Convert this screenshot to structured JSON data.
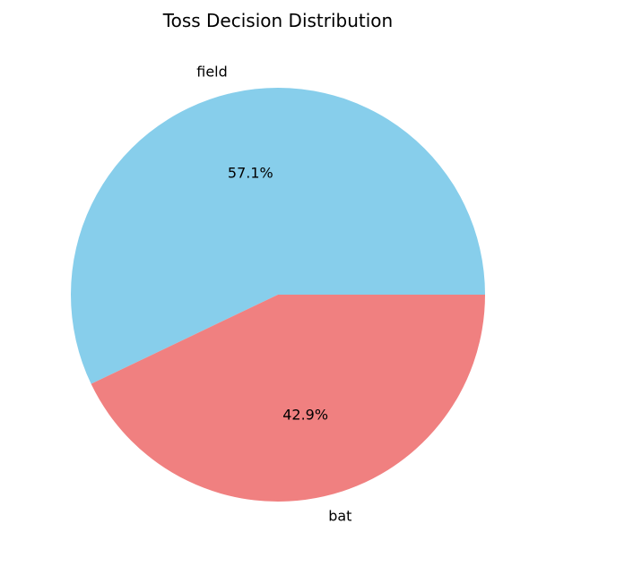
{
  "chart_data": {
    "type": "pie",
    "title": "Toss Decision Distribution",
    "categories": [
      "field",
      "bat"
    ],
    "values": [
      57.1,
      42.9
    ],
    "value_labels": [
      "57.1%",
      "42.9%"
    ],
    "colors": [
      "#87CEEB",
      "#F08080"
    ],
    "start_angle_deg": 0,
    "direction": "counterclockwise",
    "legend": "none"
  }
}
